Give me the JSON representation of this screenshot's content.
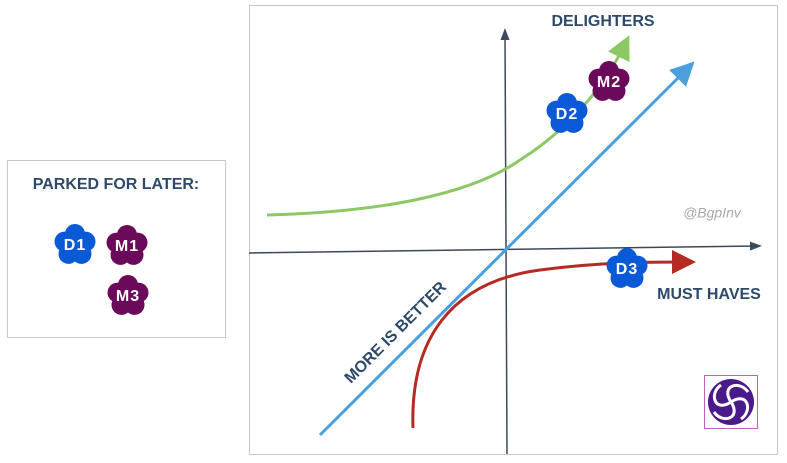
{
  "parked": {
    "title": "PARKED FOR LATER:",
    "items": [
      "D1",
      "M1",
      "M3"
    ]
  },
  "diagram": {
    "delighters": "DELIGHTERS",
    "must_haves": "MUST HAVES",
    "more_is_better": "MORE IS BETTER",
    "watermark": "@BgpInv",
    "items": [
      "M2",
      "D2",
      "D3"
    ]
  }
}
